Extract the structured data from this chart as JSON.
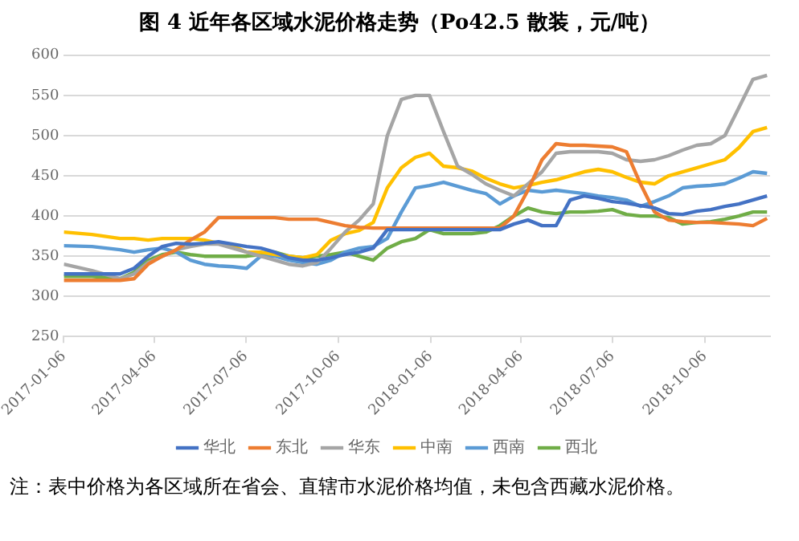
{
  "chart_data": {
    "type": "line",
    "title": "图 4  近年各区域水泥价格走势（Po42.5 散装，元/吨）",
    "x": [
      "2017-01-06",
      "2017-02-03",
      "2017-03-03",
      "2017-03-17",
      "2017-03-31",
      "2017-04-14",
      "2017-04-28",
      "2017-05-12",
      "2017-05-26",
      "2017-06-09",
      "2017-06-23",
      "2017-07-07",
      "2017-07-21",
      "2017-08-04",
      "2017-08-18",
      "2017-09-01",
      "2017-09-15",
      "2017-09-29",
      "2017-10-13",
      "2017-10-27",
      "2017-11-10",
      "2017-11-24",
      "2017-12-08",
      "2017-12-22",
      "2018-01-05",
      "2018-01-19",
      "2018-02-02",
      "2018-02-16",
      "2018-03-02",
      "2018-03-16",
      "2018-03-30",
      "2018-04-13",
      "2018-04-27",
      "2018-05-11",
      "2018-05-25",
      "2018-06-08",
      "2018-06-22",
      "2018-07-06",
      "2018-07-20",
      "2018-08-03",
      "2018-08-17",
      "2018-08-31",
      "2018-09-14",
      "2018-09-28",
      "2018-10-12",
      "2018-10-26",
      "2018-11-09",
      "2018-11-23",
      "2018-12-07"
    ],
    "series": [
      {
        "name": "华北",
        "color": "#4472c4",
        "values": [
          328,
          328,
          328,
          335,
          350,
          362,
          366,
          365,
          366,
          368,
          365,
          362,
          360,
          355,
          348,
          345,
          345,
          348,
          352,
          355,
          360,
          383,
          383,
          383,
          383,
          383,
          383,
          383,
          383,
          383,
          390,
          395,
          388,
          388,
          420,
          425,
          422,
          418,
          416,
          413,
          410,
          403,
          402,
          406,
          408,
          412,
          415,
          420,
          425
        ]
      },
      {
        "name": "东北",
        "color": "#ed7d31",
        "values": [
          320,
          320,
          320,
          322,
          340,
          350,
          358,
          370,
          380,
          398,
          398,
          398,
          398,
          398,
          396,
          396,
          396,
          392,
          388,
          386,
          385,
          385,
          385,
          385,
          385,
          385,
          385,
          385,
          385,
          385,
          400,
          432,
          470,
          490,
          488,
          488,
          487,
          486,
          480,
          440,
          405,
          395,
          393,
          392,
          392,
          391,
          390,
          388,
          397
        ]
      },
      {
        "name": "华东",
        "color": "#a5a5a5",
        "values": [
          340,
          332,
          322,
          328,
          342,
          350,
          358,
          362,
          365,
          365,
          360,
          355,
          350,
          345,
          340,
          338,
          342,
          360,
          380,
          395,
          415,
          500,
          545,
          550,
          550,
          505,
          462,
          452,
          440,
          432,
          425,
          440,
          455,
          478,
          480,
          480,
          480,
          478,
          470,
          468,
          470,
          475,
          482,
          488,
          490,
          500,
          535,
          570,
          575
        ]
      },
      {
        "name": "中南",
        "color": "#ffc000",
        "values": [
          380,
          377,
          372,
          372,
          370,
          372,
          372,
          372,
          370,
          366,
          363,
          355,
          355,
          352,
          350,
          348,
          352,
          370,
          378,
          382,
          392,
          435,
          460,
          473,
          478,
          462,
          460,
          456,
          447,
          440,
          435,
          438,
          442,
          445,
          450,
          455,
          458,
          455,
          448,
          442,
          440,
          450,
          455,
          460,
          465,
          470,
          485,
          505,
          510
        ]
      },
      {
        "name": "西南",
        "color": "#5b9bd5",
        "values": [
          363,
          362,
          358,
          355,
          358,
          360,
          355,
          345,
          340,
          338,
          337,
          335,
          350,
          350,
          345,
          342,
          340,
          345,
          355,
          360,
          362,
          372,
          405,
          435,
          438,
          442,
          437,
          432,
          428,
          415,
          425,
          432,
          430,
          432,
          430,
          428,
          425,
          423,
          420,
          412,
          418,
          425,
          435,
          437,
          438,
          440,
          447,
          455,
          453
        ]
      },
      {
        "name": "西北",
        "color": "#70ad47",
        "values": [
          325,
          325,
          322,
          330,
          345,
          352,
          355,
          352,
          350,
          350,
          350,
          350,
          352,
          355,
          350,
          348,
          350,
          352,
          355,
          350,
          345,
          360,
          368,
          372,
          383,
          378,
          378,
          378,
          380,
          388,
          400,
          410,
          405,
          403,
          405,
          405,
          406,
          408,
          402,
          400,
          400,
          398,
          390,
          392,
          393,
          396,
          400,
          405,
          405
        ]
      }
    ],
    "xlim": [
      "2017-01-06",
      "2018-12-10"
    ],
    "xticks": [
      "2017-01-06",
      "2017-04-06",
      "2017-07-06",
      "2017-10-06",
      "2018-01-06",
      "2018-04-06",
      "2018-07-06",
      "2018-10-06"
    ],
    "ylim": [
      250,
      600
    ],
    "yticks": [
      250,
      300,
      350,
      400,
      450,
      500,
      550,
      600
    ],
    "grid": "y",
    "legend": "bottom",
    "marker": "none",
    "line_style": "solid",
    "annotations": [
      "注：表中价格为各区域所在省会、直辖市水泥价格均值，未包含西藏水泥价格。"
    ]
  }
}
